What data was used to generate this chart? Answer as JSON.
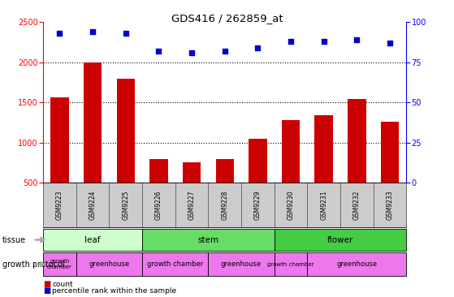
{
  "title": "GDS416 / 262859_at",
  "samples": [
    "GSM9223",
    "GSM9224",
    "GSM9225",
    "GSM9226",
    "GSM9227",
    "GSM9228",
    "GSM9229",
    "GSM9230",
    "GSM9231",
    "GSM9232",
    "GSM9233"
  ],
  "counts": [
    1560,
    2000,
    1800,
    790,
    755,
    790,
    1050,
    1280,
    1345,
    1540,
    1260
  ],
  "percentiles": [
    93,
    94,
    93,
    82,
    81,
    82,
    84,
    88,
    88,
    89,
    87
  ],
  "ylim_left": [
    500,
    2500
  ],
  "ylim_right": [
    0,
    100
  ],
  "yticks_left": [
    500,
    1000,
    1500,
    2000,
    2500
  ],
  "yticks_right": [
    0,
    25,
    50,
    75,
    100
  ],
  "bar_color": "#cc0000",
  "dot_color": "#0000cc",
  "tissue_groups": [
    {
      "label": "leaf",
      "start": 0,
      "end": 3,
      "color": "#ccffcc"
    },
    {
      "label": "stem",
      "start": 3,
      "end": 7,
      "color": "#66dd66"
    },
    {
      "label": "flower",
      "start": 7,
      "end": 11,
      "color": "#44cc44"
    }
  ],
  "growth_protocol_groups": [
    {
      "label": "growth\nchamber",
      "start": 0,
      "end": 1,
      "color": "#ee77ee"
    },
    {
      "label": "greenhouse",
      "start": 1,
      "end": 3,
      "color": "#ee77ee"
    },
    {
      "label": "growth chamber",
      "start": 3,
      "end": 5,
      "color": "#ee77ee"
    },
    {
      "label": "greenhouse",
      "start": 5,
      "end": 7,
      "color": "#ee77ee"
    },
    {
      "label": "growth chamber",
      "start": 7,
      "end": 8,
      "color": "#ee77ee"
    },
    {
      "label": "greenhouse",
      "start": 8,
      "end": 11,
      "color": "#ee77ee"
    }
  ],
  "tissue_label": "tissue",
  "protocol_label": "growth protocol",
  "legend_count_label": "count",
  "legend_pct_label": "percentile rank within the sample",
  "tick_label_bg": "#cccccc",
  "grid_dotted_ticks": [
    1000,
    1500,
    2000
  ],
  "fig_width": 5.59,
  "fig_height": 3.66,
  "fig_dpi": 100
}
